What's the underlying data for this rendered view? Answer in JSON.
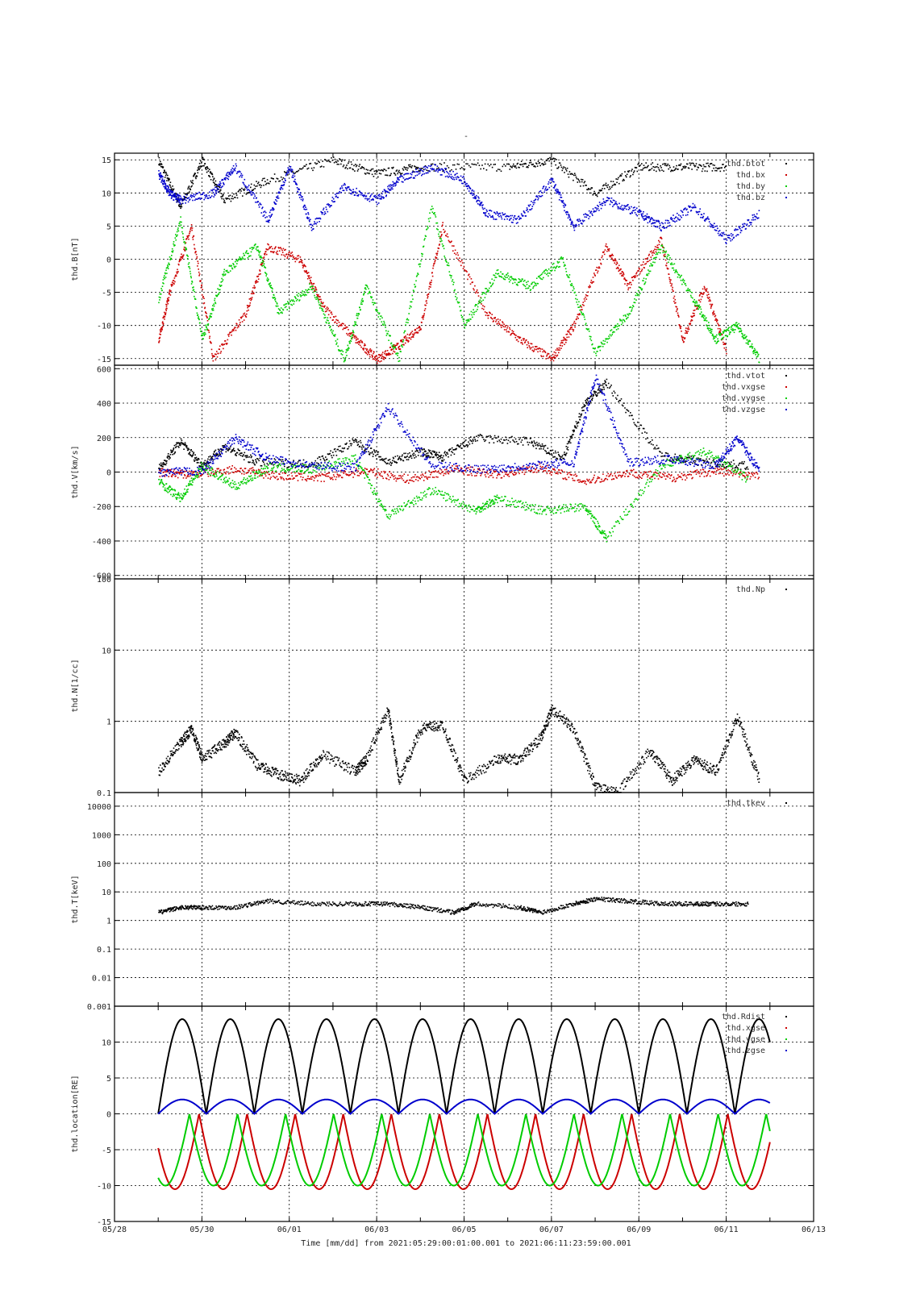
{
  "figure_title": "-",
  "time_label": "Time [mm/dd]  from 2021:05:29:00:01:00.001  to  2021:06:11:23:59:00.001",
  "colors": {
    "black": "#000000",
    "red": "#cc0000",
    "green": "#00cc00",
    "blue": "#0000cc"
  },
  "chart_data": [
    {
      "type": "scatter",
      "ylabel": "thd.B[nT]",
      "ylim": [
        -16,
        16
      ],
      "yscale": "linear",
      "yticks": [
        15,
        10,
        5,
        0,
        -5,
        -10,
        -15
      ],
      "legend_placement": "top-right",
      "x_domain": [
        "05/28",
        "06/13"
      ],
      "grid": true,
      "series": [
        {
          "name": "thd.btot",
          "color": "#000000",
          "x": [
            "05/29 00:00",
            "05/29 12:00",
            "05/30 00:00",
            "05/30 12:00",
            "05/31 12:00",
            "06/02 00:00",
            "06/03 00:00",
            "06/04 00:00",
            "06/06 00:00",
            "06/07 00:00",
            "06/08 00:00",
            "06/09 00:00",
            "06/10 00:00",
            "06/11 00:00"
          ],
          "y": [
            15,
            8,
            15,
            9,
            12,
            15,
            13,
            14,
            14,
            15,
            10,
            14,
            14,
            14
          ]
        },
        {
          "name": "thd.bx",
          "color": "#cc0000",
          "x": [
            "05/29 00:00",
            "05/29 06:00",
            "05/29 18:00",
            "05/30 06:00",
            "05/31 00:00",
            "05/31 12:00",
            "06/01 06:00",
            "06/01 18:00",
            "06/02 12:00",
            "06/03 00:00",
            "06/03 12:00",
            "06/04 00:00",
            "06/04 12:00",
            "06/05 12:00",
            "06/06 06:00",
            "06/07 00:00",
            "06/07 12:00",
            "06/08 06:00",
            "06/08 18:00",
            "06/09 12:00",
            "06/10 00:00",
            "06/10 12:00",
            "06/11 00:00"
          ],
          "y": [
            -12,
            -5,
            5,
            -15,
            -8,
            2,
            0,
            -7,
            -12,
            -15,
            -13,
            -10,
            5,
            -8,
            -12,
            -15,
            -10,
            2,
            -4,
            3,
            -12,
            -4,
            -14
          ]
        },
        {
          "name": "thd.by",
          "color": "#00cc00",
          "x": [
            "05/29 00:00",
            "05/29 12:00",
            "05/30 00:00",
            "05/30 12:00",
            "05/31 06:00",
            "05/31 18:00",
            "06/01 12:00",
            "06/02 06:00",
            "06/02 18:00",
            "06/03 12:00",
            "06/04 06:00",
            "06/05 00:00",
            "06/05 18:00",
            "06/06 12:00",
            "06/07 06:00",
            "06/08 00:00",
            "06/08 18:00",
            "06/09 12:00",
            "06/10 06:00",
            "06/10 18:00",
            "06/11 06:00",
            "06/11 18:00"
          ],
          "y": [
            -6,
            6,
            -12,
            -2,
            2,
            -8,
            -4,
            -15,
            -4,
            -15,
            8,
            -10,
            -2,
            -4,
            0,
            -14,
            -8,
            2,
            -6,
            -12,
            -10,
            -15
          ]
        },
        {
          "name": "thd.bz",
          "color": "#0000cc",
          "x": [
            "05/29 00:00",
            "05/29 06:00",
            "05/29 12:00",
            "05/30 06:00",
            "05/30 18:00",
            "05/31 12:00",
            "06/01 00:00",
            "06/01 12:00",
            "06/02 06:00",
            "06/03 00:00",
            "06/03 12:00",
            "06/04 06:00",
            "06/05 00:00",
            "06/05 12:00",
            "06/06 06:00",
            "06/07 00:00",
            "06/07 12:00",
            "06/08 06:00",
            "06/09 00:00",
            "06/09 12:00",
            "06/10 06:00",
            "06/11 00:00",
            "06/11 18:00"
          ],
          "y": [
            13,
            10,
            9,
            10,
            14,
            6,
            14,
            5,
            11,
            9,
            12,
            14,
            12,
            7,
            6,
            12,
            5,
            9,
            7,
            5,
            8,
            3,
            7
          ]
        }
      ]
    },
    {
      "type": "scatter",
      "ylabel": "thd.V[km/s]",
      "ylim": [
        -620,
        620
      ],
      "yscale": "linear",
      "yticks": [
        600,
        400,
        200,
        0,
        -200,
        -400,
        -600
      ],
      "legend_placement": "top-right",
      "x_domain": [
        "05/28",
        "06/13"
      ],
      "grid": true,
      "series": [
        {
          "name": "thd.vtot",
          "color": "#000000",
          "x": [
            "05/29 00:00",
            "05/29 12:00",
            "05/30 00:00",
            "05/30 12:00",
            "05/31 06:00",
            "06/01 12:00",
            "06/02 12:00",
            "06/03 06:00",
            "06/04 00:00",
            "06/04 12:00",
            "06/05 06:00",
            "06/06 12:00",
            "06/07 06:00",
            "06/07 18:00",
            "06/08 06:00",
            "06/09 12:00",
            "06/10 12:00",
            "06/11 12:00"
          ],
          "y": [
            20,
            180,
            40,
            150,
            60,
            50,
            180,
            60,
            120,
            90,
            200,
            180,
            80,
            400,
            520,
            100,
            60,
            40
          ]
        },
        {
          "name": "thd.vxgse",
          "color": "#cc0000",
          "x": [
            "05/29 00:00",
            "05/29 18:00",
            "05/30 18:00",
            "05/31 18:00",
            "06/01 18:00",
            "06/02 18:00",
            "06/03 18:00",
            "06/04 18:00",
            "06/05 18:00",
            "06/06 18:00",
            "06/07 18:00",
            "06/08 18:00",
            "06/09 18:00",
            "06/10 18:00",
            "06/11 18:00"
          ],
          "y": [
            0,
            -10,
            20,
            -20,
            -30,
            10,
            -40,
            20,
            -10,
            30,
            -50,
            0,
            -30,
            10,
            -20
          ]
        },
        {
          "name": "thd.vygse",
          "color": "#00cc00",
          "x": [
            "05/29 00:00",
            "05/29 12:00",
            "05/30 00:00",
            "05/30 18:00",
            "05/31 12:00",
            "06/01 12:00",
            "06/02 12:00",
            "06/03 06:00",
            "06/04 06:00",
            "06/05 06:00",
            "06/05 18:00",
            "06/06 18:00",
            "06/07 18:00",
            "06/08 06:00",
            "06/09 12:00",
            "06/10 12:00",
            "06/11 12:00"
          ],
          "y": [
            -50,
            -150,
            40,
            -80,
            30,
            20,
            80,
            -250,
            -100,
            -220,
            -150,
            -220,
            -200,
            -380,
            40,
            120,
            -40
          ]
        },
        {
          "name": "thd.vzgse",
          "color": "#0000cc",
          "x": [
            "05/29 00:00",
            "05/30 00:00",
            "05/30 18:00",
            "05/31 12:00",
            "06/01 12:00",
            "06/02 12:00",
            "06/03 06:00",
            "06/04 06:00",
            "06/05 12:00",
            "06/06 12:00",
            "06/07 12:00",
            "06/08 00:00",
            "06/08 18:00",
            "06/09 18:00",
            "06/10 18:00",
            "06/11 06:00",
            "06/11 18:00"
          ],
          "y": [
            0,
            10,
            200,
            80,
            40,
            30,
            380,
            40,
            20,
            40,
            60,
            560,
            60,
            80,
            40,
            200,
            10
          ]
        }
      ]
    },
    {
      "type": "scatter",
      "ylabel": "thd.N[1/cc]",
      "ylim": [
        0.1,
        100
      ],
      "yscale": "log",
      "yticks": [
        100,
        10,
        1,
        0.1
      ],
      "legend_placement": "top-right",
      "x_domain": [
        "05/28",
        "06/13"
      ],
      "grid": true,
      "series": [
        {
          "name": "thd.Np",
          "color": "#000000",
          "x": [
            "05/29 00:00",
            "05/29 12:00",
            "05/29 18:00",
            "05/30 00:00",
            "05/30 12:00",
            "05/30 18:00",
            "05/31 06:00",
            "05/31 18:00",
            "06/01 06:00",
            "06/01 18:00",
            "06/02 12:00",
            "06/02 18:00",
            "06/03 06:00",
            "06/03 12:00",
            "06/04 00:00",
            "06/04 12:00",
            "06/05 00:00",
            "06/05 18:00",
            "06/06 06:00",
            "06/06 18:00",
            "06/07 00:00",
            "06/07 12:00",
            "06/08 00:00",
            "06/08 12:00",
            "06/09 06:00",
            "06/09 18:00",
            "06/10 06:00",
            "06/10 18:00",
            "06/11 06:00",
            "06/11 18:00"
          ],
          "y": [
            0.2,
            0.5,
            0.8,
            0.3,
            0.5,
            0.7,
            0.25,
            0.18,
            0.15,
            0.35,
            0.2,
            0.3,
            1.5,
            0.15,
            0.8,
            0.9,
            0.15,
            0.3,
            0.3,
            0.6,
            1.5,
            0.8,
            0.12,
            0.1,
            0.4,
            0.15,
            0.3,
            0.2,
            1.2,
            0.15
          ]
        }
      ]
    },
    {
      "type": "scatter",
      "ylabel": "thd.T[keV]",
      "ylim": [
        0.001,
        30000
      ],
      "yscale": "log",
      "yticks": [
        10000,
        1000,
        100,
        10,
        1,
        0.1,
        0.01,
        0.001
      ],
      "ytick_labels": [
        "10000",
        "1000",
        "100",
        "10",
        "1",
        "0.1",
        "0.01",
        "0.001"
      ],
      "legend_placement": "top-right",
      "x_domain": [
        "05/28",
        "06/13"
      ],
      "grid": true,
      "series": [
        {
          "name": "thd.tkev",
          "color": "#000000",
          "x": [
            "05/29 00:00",
            "05/29 12:00",
            "05/30 00:00",
            "05/30 18:00",
            "05/31 12:00",
            "06/01 12:00",
            "06/02 12:00",
            "06/03 06:00",
            "06/04 00:00",
            "06/04 18:00",
            "06/05 06:00",
            "06/06 06:00",
            "06/06 18:00",
            "06/07 12:00",
            "06/08 00:00",
            "06/08 18:00",
            "06/09 12:00",
            "06/10 06:00",
            "06/10 18:00",
            "06/11 12:00"
          ],
          "y": [
            2,
            3,
            3,
            3,
            5,
            4,
            4,
            4,
            3,
            2,
            4,
            3,
            2,
            4,
            6,
            5,
            4,
            4,
            4,
            4
          ]
        }
      ]
    },
    {
      "type": "line",
      "ylabel": "thd.location[RE]",
      "ylim": [
        -15,
        15
      ],
      "yscale": "linear",
      "yticks": [
        10,
        5,
        0,
        -5,
        -10,
        -15
      ],
      "legend_placement": "top-right",
      "x_domain": [
        "05/28",
        "06/13"
      ],
      "grid": true,
      "x_ticks": [
        "05/28",
        "05/30",
        "06/01",
        "06/03",
        "06/05",
        "06/07",
        "06/09",
        "06/11",
        "06/13"
      ],
      "series": [
        {
          "name": "thd.Rdist",
          "color": "#000000",
          "kind": "orbit",
          "period_days": 1.1,
          "amplitude": 13.2,
          "baseline": 0
        },
        {
          "name": "thd.xgse",
          "color": "#cc0000",
          "kind": "orbit",
          "period_days": 1.1,
          "amplitude": -10.5,
          "baseline": 0
        },
        {
          "name": "thd.ygse",
          "color": "#00cc00",
          "kind": "orbit",
          "period_days": 1.1,
          "amplitude": -10,
          "baseline": 0
        },
        {
          "name": "thd.zgse",
          "color": "#0000cc",
          "kind": "orbit",
          "period_days": 1.1,
          "amplitude": 2,
          "baseline": 0
        }
      ]
    }
  ]
}
